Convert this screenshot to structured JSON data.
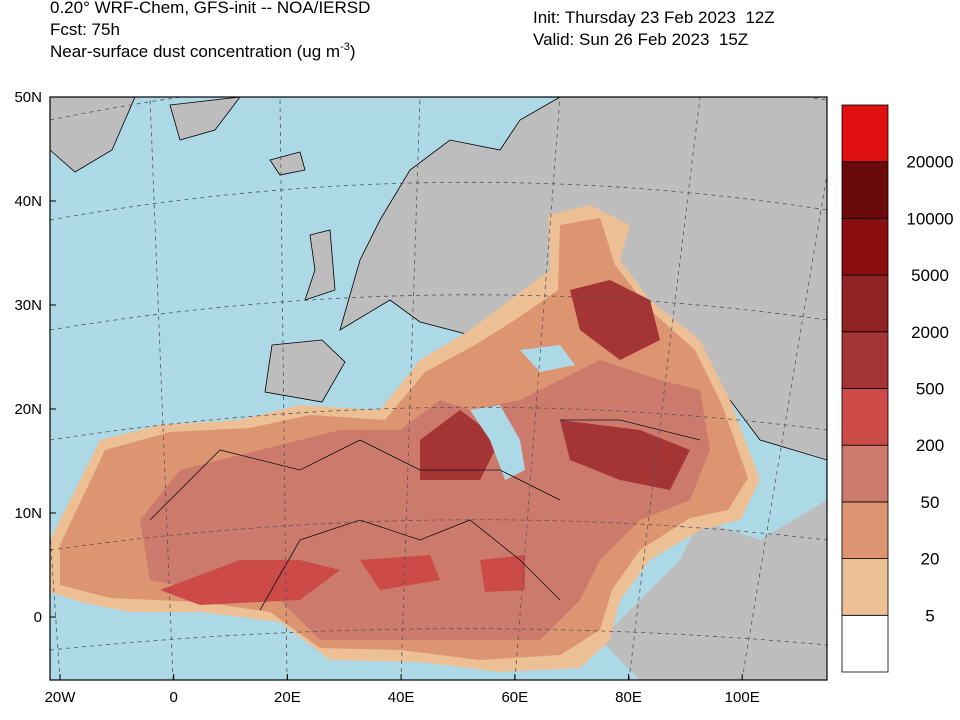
{
  "header": {
    "title": "0.20° WRF-Chem, GFS-init -- NOA/IERSD",
    "forecast": "Fcst: 75h",
    "variable": "Near-surface dust concentration (ug m",
    "variable_exponent": "-3",
    "variable_close": ")",
    "init": "Init: Thursday 23 Feb 2023  12Z",
    "valid": "Valid: Sun 26 Feb 2023  15Z"
  },
  "map": {
    "lat_labels": [
      "50N",
      "40N",
      "30N",
      "20N",
      "10N",
      "0"
    ],
    "lon_labels": [
      "20W",
      "0",
      "20E",
      "40E",
      "60E",
      "80E",
      "100E"
    ]
  },
  "colorbar": {
    "levels": [
      5,
      20,
      50,
      200,
      500,
      2000,
      5000,
      10000,
      20000
    ],
    "colors": [
      "#ffffff",
      "#ecbf94",
      "#dc9570",
      "#cc7a6c",
      "#cc4a48",
      "#a53535",
      "#8f2222",
      "#8a0e0e",
      "#6b0a0a",
      "#e01010"
    ]
  }
}
